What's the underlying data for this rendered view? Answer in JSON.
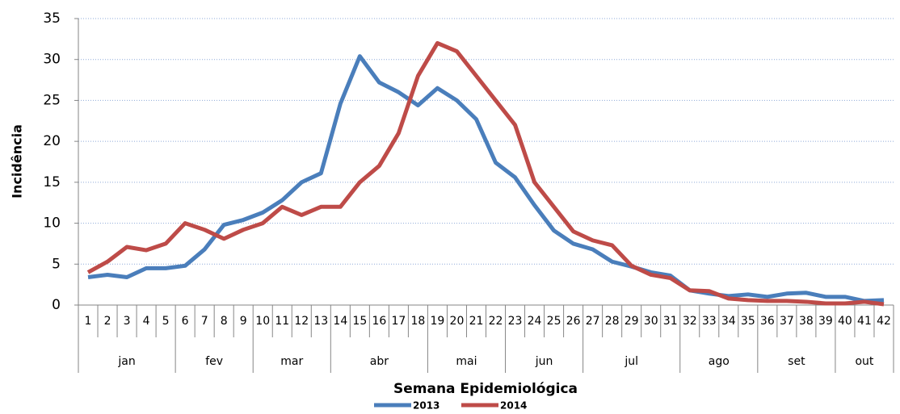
{
  "chart_data": {
    "type": "line",
    "y_label": "Incidência",
    "x_label": "Semana Epidemiológica",
    "categories": [
      "1",
      "2",
      "3",
      "4",
      "5",
      "6",
      "7",
      "8",
      "9",
      "10",
      "11",
      "12",
      "13",
      "14",
      "15",
      "16",
      "17",
      "18",
      "19",
      "20",
      "21",
      "22",
      "23",
      "24",
      "25",
      "26",
      "27",
      "28",
      "29",
      "30",
      "31",
      "32",
      "33",
      "34",
      "35",
      "36",
      "37",
      "38",
      "39",
      "40",
      "41",
      "42"
    ],
    "months": [
      "jan",
      null,
      null,
      null,
      null,
      "fev",
      null,
      null,
      null,
      "mar",
      null,
      null,
      null,
      "abr",
      null,
      null,
      null,
      null,
      "mai",
      null,
      null,
      null,
      "jun",
      null,
      null,
      null,
      "jul",
      null,
      null,
      null,
      null,
      "ago",
      null,
      null,
      null,
      "set",
      null,
      null,
      null,
      "out",
      null,
      null
    ],
    "series": [
      {
        "name": "2013",
        "color": "#4a7ebb",
        "values": [
          3.4,
          3.7,
          3.4,
          4.5,
          4.5,
          4.8,
          6.8,
          9.8,
          10.4,
          11.3,
          12.8,
          15,
          16.1,
          24.6,
          30.4,
          27.2,
          26,
          24.4,
          26.5,
          25,
          22.7,
          17.4,
          15.6,
          12.2,
          9.1,
          7.5,
          6.8,
          5.3,
          4.7,
          4.0,
          3.6,
          1.8,
          1.4,
          1.1,
          1.3,
          1.0,
          1.4,
          1.5,
          1.0,
          1.0,
          0.5,
          0.6
        ]
      },
      {
        "name": "2014",
        "color": "#be4b48",
        "values": [
          4.0,
          5.3,
          7.1,
          6.7,
          7.5,
          10,
          9.2,
          8.1,
          9.2,
          10,
          12,
          11,
          12,
          12,
          15,
          17,
          21,
          28,
          32,
          31,
          28,
          25,
          22,
          15,
          12,
          9,
          7.9,
          7.3,
          4.8,
          3.7,
          3.3,
          1.8,
          1.7,
          0.8,
          0.6,
          0.5,
          0.5,
          0.4,
          0.2,
          0.2,
          0.4,
          0.1
        ]
      }
    ],
    "ylim": [
      0,
      35
    ],
    "yticks": [
      0,
      5,
      10,
      15,
      20,
      25,
      30,
      35
    ],
    "grid": true,
    "legend": "bottom"
  }
}
